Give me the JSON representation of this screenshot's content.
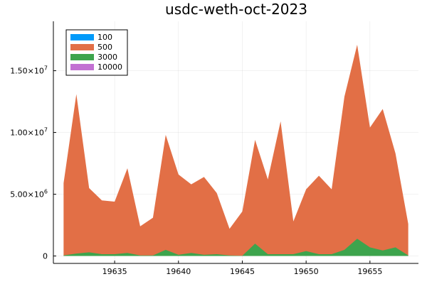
{
  "chart_data": {
    "type": "area",
    "title": "usdc-weth-oct-2023",
    "xlabel": "",
    "ylabel": "",
    "x": [
      19631,
      19632,
      19633,
      19634,
      19635,
      19636,
      19637,
      19638,
      19639,
      19640,
      19641,
      19642,
      19643,
      19644,
      19645,
      19646,
      19647,
      19648,
      19649,
      19650,
      19651,
      19652,
      19653,
      19654,
      19655,
      19656,
      19657,
      19658
    ],
    "xlim": [
      19630.2,
      19658.8
    ],
    "ylim": [
      -600000,
      19000000
    ],
    "x_ticks": [
      19635,
      19640,
      19645,
      19650,
      19655
    ],
    "x_tick_labels": [
      "19635",
      "19640",
      "19645",
      "19650",
      "19655"
    ],
    "y_ticks": [
      0,
      5000000,
      10000000,
      15000000
    ],
    "y_tick_labels": [
      {
        "base": "0",
        "exp": ""
      },
      {
        "base": "5.00×10",
        "exp": "6"
      },
      {
        "base": "1.00×10",
        "exp": "7"
      },
      {
        "base": "1.50×10",
        "exp": "7"
      }
    ],
    "grid": true,
    "legend_position": "top-left",
    "series": [
      {
        "name": "100",
        "color": "#009AFA",
        "values": [
          0,
          0,
          0,
          0,
          0,
          0,
          0,
          0,
          0,
          0,
          0,
          0,
          0,
          0,
          0,
          0,
          0,
          0,
          0,
          0,
          0,
          0,
          0,
          0,
          0,
          0,
          0,
          0
        ]
      },
      {
        "name": "500",
        "color": "#E26F46",
        "values": [
          5900000,
          13100000,
          5500000,
          4500000,
          4400000,
          7100000,
          2400000,
          3100000,
          9800000,
          6600000,
          5800000,
          6400000,
          5100000,
          2200000,
          3600000,
          9400000,
          6200000,
          10900000,
          2800000,
          5400000,
          6500000,
          5400000,
          12900000,
          17100000,
          10400000,
          11900000,
          8300000,
          2600000
        ]
      },
      {
        "name": "3000",
        "color": "#3DA44D",
        "values": [
          50000,
          200000,
          300000,
          150000,
          150000,
          250000,
          50000,
          50000,
          500000,
          100000,
          250000,
          100000,
          150000,
          50000,
          20000,
          1000000,
          150000,
          150000,
          150000,
          400000,
          150000,
          150000,
          500000,
          1400000,
          700000,
          450000,
          700000,
          50000
        ]
      },
      {
        "name": "10000",
        "color": "#C271D2",
        "values": [
          0,
          0,
          0,
          0,
          0,
          0,
          0,
          0,
          0,
          0,
          0,
          0,
          0,
          0,
          0,
          0,
          0,
          0,
          0,
          0,
          0,
          0,
          0,
          0,
          0,
          0,
          0,
          0
        ]
      }
    ]
  }
}
